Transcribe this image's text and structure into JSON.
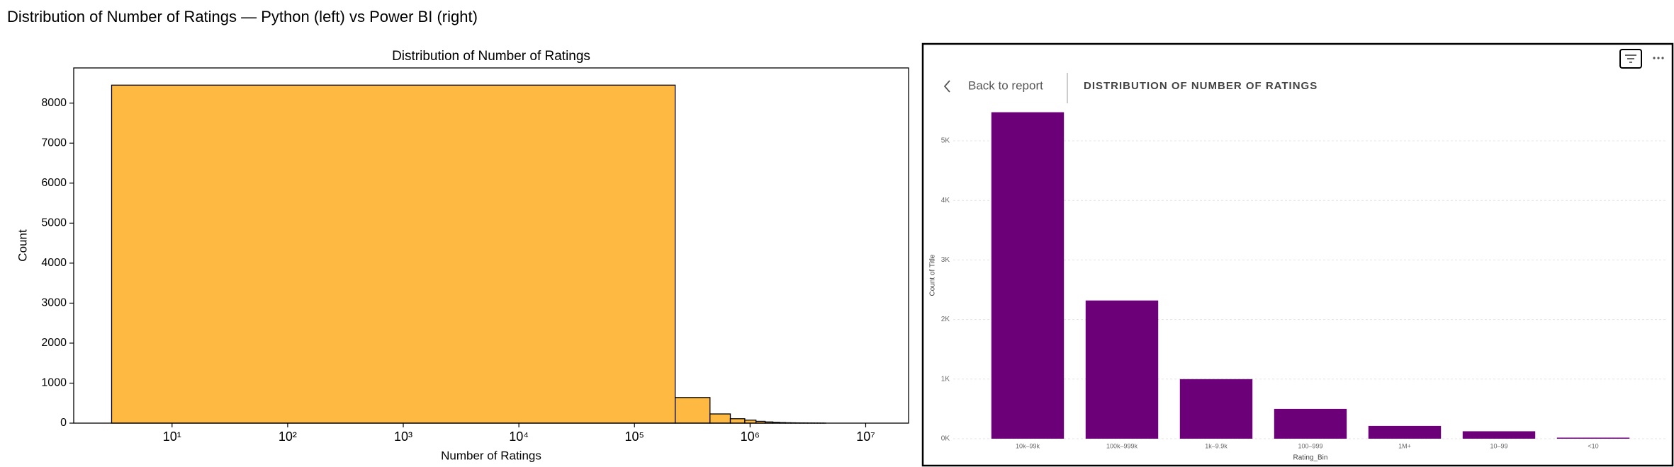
{
  "title": "Distribution of Number of Ratings — Python (left) vs Power BI (right)",
  "navigation": {
    "back": "Back to report"
  },
  "chart_data": [
    {
      "type": "histogram",
      "title": "Distribution of Number of Ratings",
      "x_label": "Number of Ratings",
      "y_label": "Count",
      "color": "#fdb942",
      "xscale": "log",
      "bins": [
        3,
        225000,
        450000,
        675000,
        900000,
        1125000,
        1350000,
        1575000,
        1800000,
        2025000,
        2250000,
        2475000,
        2700000,
        2925000,
        3150000,
        3375000,
        3600000,
        3825000,
        4050000,
        4275000,
        4500000
      ],
      "counts": [
        8450,
        640,
        230,
        110,
        75,
        45,
        30,
        20,
        14,
        10,
        8,
        6,
        5,
        4,
        3,
        3,
        2,
        2,
        1,
        1
      ],
      "xlim": [
        1.41,
        23500000
      ],
      "ylim": [
        0,
        8880
      ],
      "xticks": [
        {
          "value": 10,
          "label": "10¹"
        },
        {
          "value": 100,
          "label": "10²"
        },
        {
          "value": 1000,
          "label": "10³"
        },
        {
          "value": 10000,
          "label": "10⁴"
        },
        {
          "value": 100000,
          "label": "10⁵"
        },
        {
          "value": 1000000,
          "label": "10⁶"
        },
        {
          "value": 10000000,
          "label": "10⁷"
        }
      ],
      "yticks": [
        0,
        1000,
        2000,
        3000,
        4000,
        5000,
        6000,
        7000,
        8000
      ],
      "grid": false
    },
    {
      "type": "bar",
      "title": "DISTRIBUTION OF NUMBER OF RATINGS",
      "x_label": "Rating_Bin",
      "y_label": "Count of Title",
      "color": "#6b0078",
      "categories": [
        "10k–99k",
        "100k–999k",
        "1k–9.9k",
        "100–999",
        "1M+",
        "10–99",
        "<10"
      ],
      "values": [
        5480,
        2320,
        1000,
        500,
        215,
        125,
        18
      ],
      "ylim": [
        0,
        5600
      ],
      "yticks": [
        {
          "value": 0,
          "label": "0K"
        },
        {
          "value": 1000,
          "label": "1K"
        },
        {
          "value": 2000,
          "label": "2K"
        },
        {
          "value": 3000,
          "label": "3K"
        },
        {
          "value": 4000,
          "label": "4K"
        },
        {
          "value": 5000,
          "label": "5K"
        }
      ],
      "grid": true
    }
  ]
}
